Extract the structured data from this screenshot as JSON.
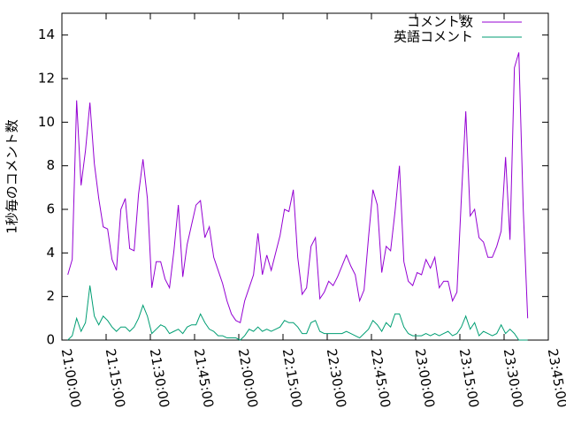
{
  "chart_data": {
    "type": "line",
    "ylabel": "1秒毎のコメント数",
    "x": [
      75720,
      75810,
      75900,
      75990,
      76080,
      76170,
      76260,
      76350,
      76440,
      76530,
      76620,
      76710,
      76800,
      76890,
      76980,
      77070,
      77160,
      77250,
      77340,
      77430,
      77520,
      77610,
      77700,
      77790,
      77880,
      77970,
      78060,
      78150,
      78240,
      78330,
      78420,
      78510,
      78600,
      78690,
      78780,
      78870,
      78960,
      79050,
      79140,
      79230,
      79320,
      79410,
      79500,
      79590,
      79680,
      79770,
      79860,
      79950,
      80040,
      80130,
      80220,
      80310,
      80400,
      80490,
      80580,
      80670,
      80760,
      80850,
      80940,
      81030,
      81120,
      81210,
      81300,
      81390,
      81480,
      81570,
      81660,
      81750,
      81840,
      81930,
      82020,
      82110,
      82200,
      82290,
      82380,
      82470,
      82560,
      82650,
      82740,
      82830,
      82920,
      83010,
      83100,
      83190,
      83280,
      83370,
      83460,
      83550,
      83640,
      83730,
      83820,
      83910,
      84000,
      84090,
      84180,
      84270,
      84360,
      84450,
      84540,
      84630,
      84720,
      84810,
      84900,
      84990,
      85080
    ],
    "series": [
      {
        "name": "コメント数",
        "color": "#9400d3",
        "values": [
          3.0,
          3.7,
          11.0,
          7.1,
          8.7,
          10.9,
          8.1,
          6.5,
          5.2,
          5.1,
          3.7,
          3.2,
          6.0,
          6.5,
          4.2,
          4.1,
          6.7,
          8.3,
          6.5,
          2.4,
          3.6,
          3.6,
          2.8,
          2.4,
          4.1,
          6.2,
          2.9,
          4.4,
          5.3,
          6.2,
          6.4,
          4.7,
          5.2,
          3.8,
          3.2,
          2.6,
          1.8,
          1.2,
          0.9,
          0.8,
          1.8,
          2.4,
          3.0,
          4.9,
          3.0,
          3.9,
          3.2,
          4.0,
          4.8,
          6.0,
          5.9,
          6.9,
          3.8,
          2.1,
          2.4,
          4.3,
          4.7,
          1.9,
          2.2,
          2.7,
          2.5,
          2.9,
          3.4,
          3.9,
          3.4,
          3.0,
          1.8,
          2.3,
          4.7,
          6.9,
          6.2,
          3.1,
          4.3,
          4.1,
          5.9,
          8.0,
          3.6,
          2.7,
          2.5,
          3.1,
          3.0,
          3.7,
          3.3,
          3.8,
          2.4,
          2.7,
          2.7,
          1.8,
          2.2,
          6.5,
          10.5,
          5.7,
          6.0,
          4.7,
          4.5,
          3.8,
          3.8,
          4.3,
          5.0,
          8.4,
          4.6,
          12.5,
          13.2,
          6.0,
          1.0
        ]
      },
      {
        "name": "英語コメント",
        "color": "#009e73",
        "values": [
          0.0,
          0.2,
          1.0,
          0.4,
          0.8,
          2.5,
          1.1,
          0.7,
          1.1,
          0.9,
          0.6,
          0.4,
          0.6,
          0.6,
          0.4,
          0.6,
          1.0,
          1.6,
          1.1,
          0.3,
          0.5,
          0.7,
          0.6,
          0.3,
          0.4,
          0.5,
          0.3,
          0.6,
          0.7,
          0.7,
          1.2,
          0.8,
          0.5,
          0.4,
          0.2,
          0.2,
          0.1,
          0.1,
          0.1,
          0.0,
          0.2,
          0.5,
          0.4,
          0.6,
          0.4,
          0.5,
          0.4,
          0.5,
          0.6,
          0.9,
          0.8,
          0.8,
          0.6,
          0.3,
          0.3,
          0.8,
          0.9,
          0.4,
          0.3,
          0.3,
          0.3,
          0.3,
          0.3,
          0.4,
          0.3,
          0.2,
          0.1,
          0.3,
          0.5,
          0.9,
          0.7,
          0.4,
          0.8,
          0.6,
          1.2,
          1.2,
          0.6,
          0.3,
          0.2,
          0.2,
          0.2,
          0.3,
          0.2,
          0.3,
          0.2,
          0.3,
          0.4,
          0.2,
          0.3,
          0.6,
          1.1,
          0.5,
          0.8,
          0.2,
          0.4,
          0.3,
          0.2,
          0.3,
          0.7,
          0.3,
          0.5,
          0.3,
          0.0,
          0.0,
          0.0
        ]
      }
    ],
    "xlim": [
      75600,
      85500
    ],
    "xticks": [
      {
        "value": 75600,
        "label": "21:00:00"
      },
      {
        "value": 76500,
        "label": "21:15:00"
      },
      {
        "value": 77400,
        "label": "21:30:00"
      },
      {
        "value": 78300,
        "label": "21:45:00"
      },
      {
        "value": 79200,
        "label": "22:00:00"
      },
      {
        "value": 80100,
        "label": "22:15:00"
      },
      {
        "value": 81000,
        "label": "22:30:00"
      },
      {
        "value": 81900,
        "label": "22:45:00"
      },
      {
        "value": 82800,
        "label": "23:00:00"
      },
      {
        "value": 83700,
        "label": "23:15:00"
      },
      {
        "value": 84600,
        "label": "23:30:00"
      },
      {
        "value": 85500,
        "label": "23:45:00"
      }
    ],
    "ylim": [
      0,
      15
    ],
    "yticks": [
      0,
      2,
      4,
      6,
      8,
      10,
      12,
      14
    ],
    "legend": "top-right"
  }
}
